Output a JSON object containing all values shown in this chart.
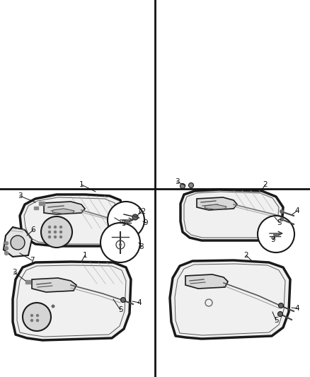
{
  "bg_color": "#ffffff",
  "line_color": "#1a1a1a",
  "divider_color": "#111111",
  "label_color": "#111111",
  "fig_width": 4.38,
  "fig_height": 5.33,
  "dpi": 100
}
